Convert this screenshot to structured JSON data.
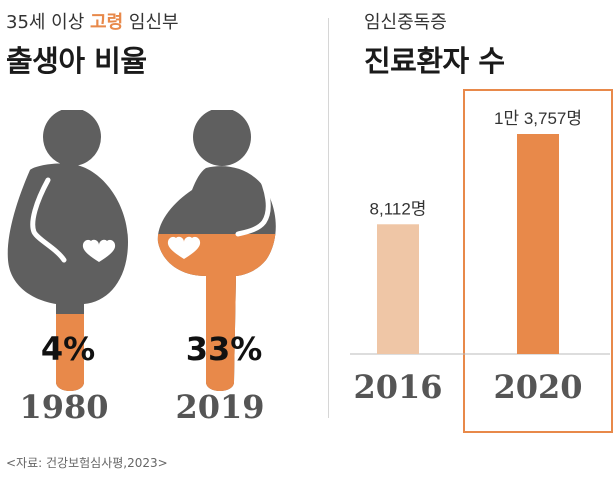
{
  "left": {
    "subtitle_pre": "35세 이상 ",
    "subtitle_highlight": "고령",
    "subtitle_post": " 임신부",
    "title": "출생아 비율",
    "figures": [
      {
        "year": "1980",
        "percent_label": "4%",
        "value": 4
      },
      {
        "year": "2019",
        "percent_label": "33%",
        "value": 33
      }
    ]
  },
  "right": {
    "subtitle": "임신중독증",
    "title": "진료환자 수",
    "bars": [
      {
        "year": "2016",
        "label": "8,112명",
        "value": 8112,
        "color": "#efc6a6"
      },
      {
        "year": "2020",
        "label": "1만 3,757명",
        "value": 13757,
        "color": "#e8894a"
      }
    ],
    "highlight_color": "#e8894a"
  },
  "source": "<자료: 건강보험심사평,2023>",
  "colors": {
    "gray": "#5f5f5f",
    "orange": "#e8894a",
    "light_orange": "#efc6a6"
  },
  "chart_data": [
    {
      "type": "pictograph",
      "title": "출생아 비율",
      "subtitle": "35세 이상 고령 임신부",
      "categories": [
        "1980",
        "2019"
      ],
      "values": [
        4,
        33
      ],
      "unit": "%"
    },
    {
      "type": "bar",
      "title": "진료환자 수",
      "subtitle": "임신중독증",
      "categories": [
        "2016",
        "2020"
      ],
      "values": [
        8112,
        13757
      ],
      "labels": [
        "8,112명",
        "1만 3,757명"
      ]
    }
  ]
}
